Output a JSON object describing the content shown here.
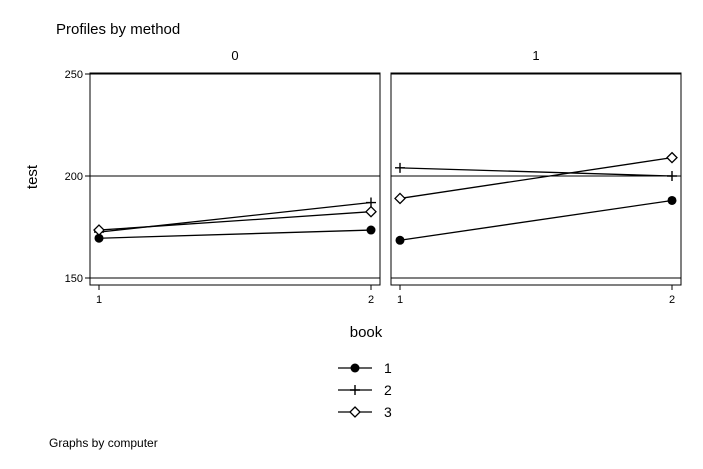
{
  "chart_data": {
    "type": "line",
    "title": "Profiles by method",
    "xlabel": "book",
    "ylabel": "test",
    "note": "Graphs by computer",
    "x": [
      1,
      2
    ],
    "x_ticks": [
      "1",
      "2"
    ],
    "y_ticks": [
      "150",
      "200",
      "250"
    ],
    "ylim": [
      150,
      250
    ],
    "grid": true,
    "legend_placement": "bottom-center",
    "panels": [
      {
        "label": "0",
        "series": [
          {
            "name": "1",
            "marker": "filled-circle",
            "values": [
              169.5,
              173.5
            ]
          },
          {
            "name": "2",
            "marker": "plus",
            "values": [
              172.5,
              187.0
            ]
          },
          {
            "name": "3",
            "marker": "hollow-diamond",
            "values": [
              173.5,
              182.5
            ]
          }
        ]
      },
      {
        "label": "1",
        "series": [
          {
            "name": "1",
            "marker": "filled-circle",
            "values": [
              168.5,
              188.0
            ]
          },
          {
            "name": "2",
            "marker": "plus",
            "values": [
              204.0,
              200.0
            ]
          },
          {
            "name": "3",
            "marker": "hollow-diamond",
            "values": [
              189.0,
              209.0
            ]
          }
        ]
      }
    ],
    "legend": [
      {
        "label": "1",
        "marker": "filled-circle"
      },
      {
        "label": "2",
        "marker": "plus"
      },
      {
        "label": "3",
        "marker": "hollow-diamond"
      }
    ]
  }
}
